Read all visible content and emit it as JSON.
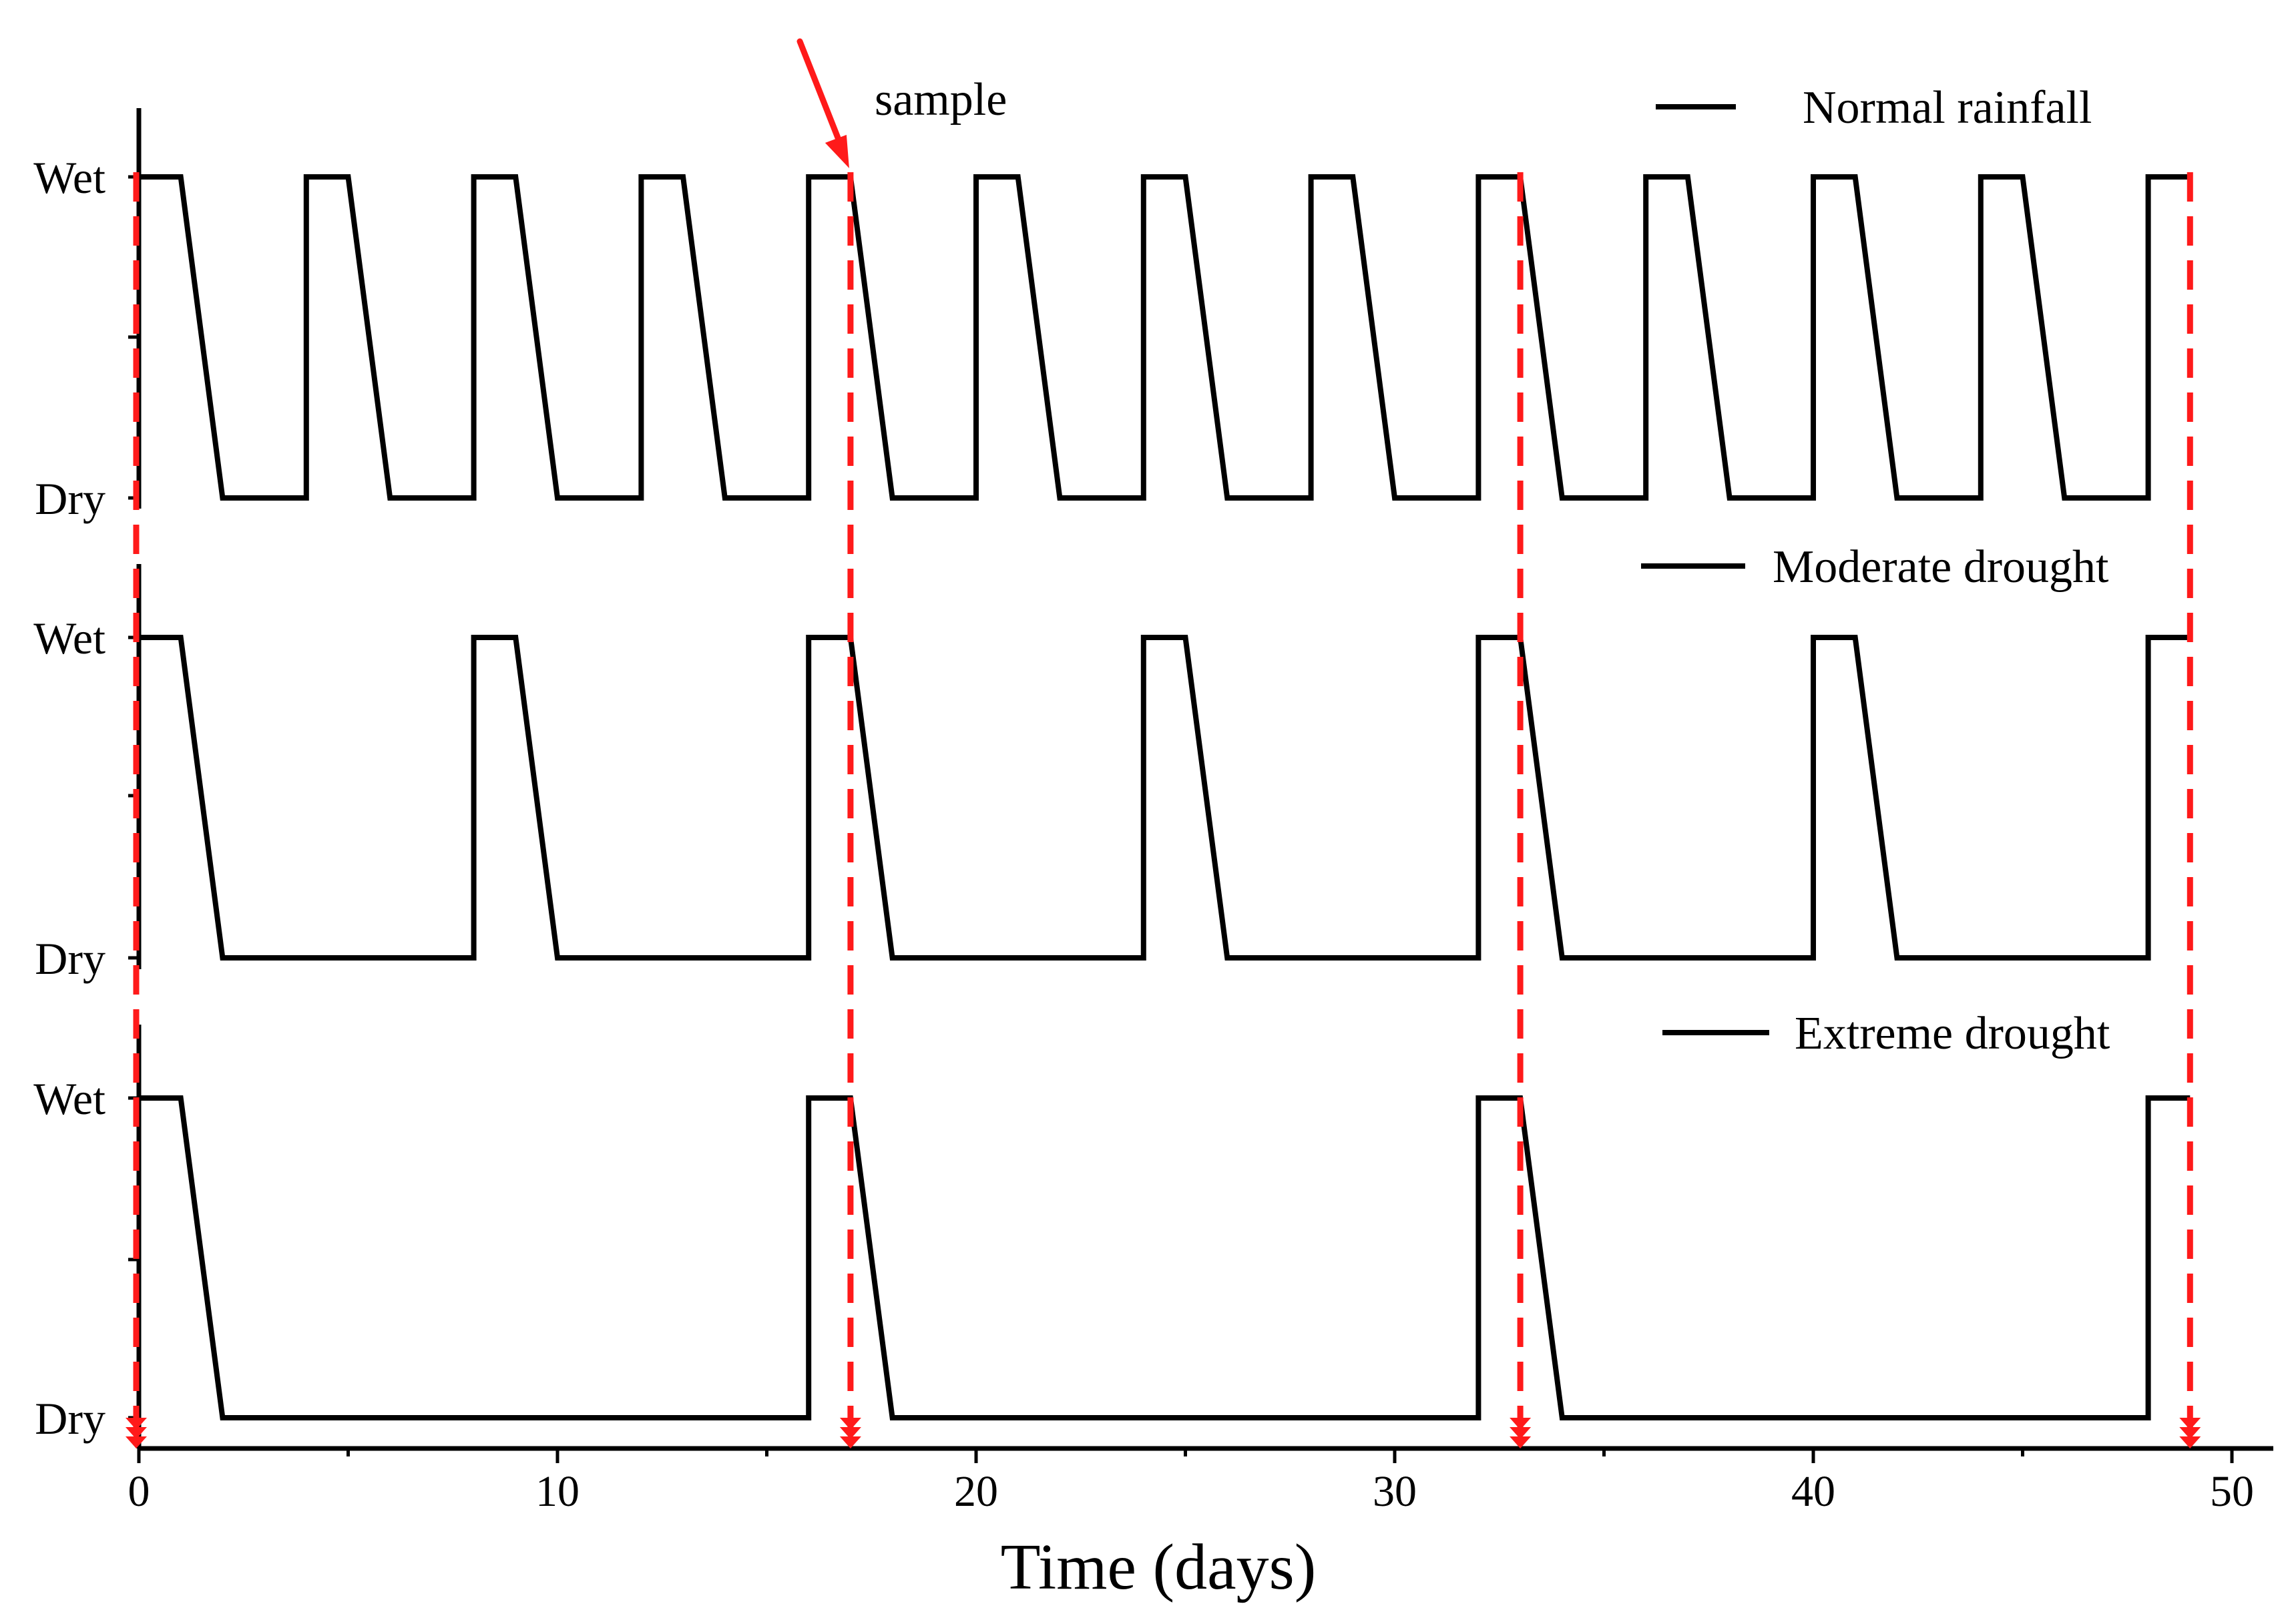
{
  "chart_data": {
    "type": "line",
    "title": "",
    "xlabel": "Time (days)",
    "xlim": [
      0,
      50.5
    ],
    "x_ticks": [
      0,
      10,
      20,
      30,
      40,
      50
    ],
    "x_tick_labels": [
      "0",
      "10",
      "20",
      "30",
      "40",
      "50"
    ],
    "y_levels": [
      "Wet",
      "Dry"
    ],
    "annotation": {
      "text": "sample",
      "target_day": 17
    },
    "sample_days": [
      0,
      17,
      33,
      49
    ],
    "series": [
      {
        "name": "Normal rainfall",
        "x": [
          0,
          1,
          2,
          4,
          4,
          5,
          6,
          8,
          8,
          9,
          10,
          12,
          12,
          13,
          14,
          16,
          16,
          17,
          18,
          20,
          20,
          21,
          22,
          24,
          24,
          25,
          26,
          28,
          28,
          29,
          30,
          32,
          32,
          33,
          34,
          36,
          36,
          37,
          38,
          40,
          40,
          41,
          42,
          44,
          44,
          45,
          46,
          48,
          48,
          49
        ],
        "y": [
          1,
          1,
          0,
          0,
          1,
          1,
          0,
          0,
          1,
          1,
          0,
          0,
          1,
          1,
          0,
          0,
          1,
          1,
          0,
          0,
          1,
          1,
          0,
          0,
          1,
          1,
          0,
          0,
          1,
          1,
          0,
          0,
          1,
          1,
          0,
          0,
          1,
          1,
          0,
          0,
          1,
          1,
          0,
          0,
          1,
          1,
          0,
          0,
          1,
          1
        ]
      },
      {
        "name": "Moderate drought",
        "x": [
          0,
          1,
          2,
          8,
          8,
          9,
          10,
          16,
          16,
          17,
          18,
          24,
          24,
          25,
          26,
          32,
          32,
          33,
          34,
          40,
          40,
          41,
          42,
          48,
          48,
          49
        ],
        "y": [
          1,
          1,
          0,
          0,
          1,
          1,
          0,
          0,
          1,
          1,
          0,
          0,
          1,
          1,
          0,
          0,
          1,
          1,
          0,
          0,
          1,
          1,
          0,
          0,
          1,
          1
        ]
      },
      {
        "name": "Extreme drought",
        "x": [
          0,
          1,
          2,
          16,
          16,
          17,
          18,
          32,
          32,
          33,
          34,
          48,
          48,
          49
        ],
        "y": [
          1,
          1,
          0,
          0,
          1,
          1,
          0,
          0,
          1,
          1,
          0,
          0,
          1,
          1
        ]
      }
    ],
    "colors": {
      "series": "#000000",
      "sample": "#ff1a1a"
    }
  }
}
